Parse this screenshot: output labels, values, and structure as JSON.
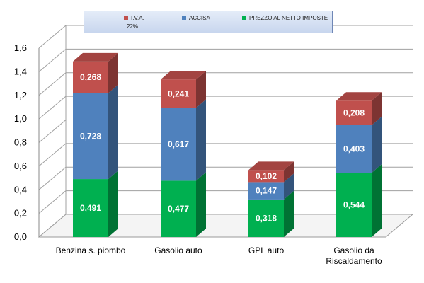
{
  "chart_data": {
    "type": "bar",
    "stacked": true,
    "three_d": true,
    "categories": [
      "Benzina s. piombo",
      "Gasolio auto",
      "GPL auto",
      "Gasolio da Riscaldamento"
    ],
    "category_lines": [
      [
        "Benzina s. piombo"
      ],
      [
        "Gasolio auto"
      ],
      [
        "GPL auto"
      ],
      [
        "Gasolio da",
        "Riscaldamento"
      ]
    ],
    "series": [
      {
        "name": "PREZZO AL NETTO IMPOSTE",
        "color": "#00b050",
        "values": [
          0.491,
          0.477,
          0.318,
          0.544
        ],
        "labels": [
          "0,491",
          "0,477",
          "0,318",
          "0,544"
        ]
      },
      {
        "name": "ACCISA",
        "color": "#4f81bd",
        "values": [
          0.728,
          0.617,
          0.147,
          0.403
        ],
        "labels": [
          "0,728",
          "0,617",
          "0,147",
          "0,403"
        ]
      },
      {
        "name": "I.V.A.",
        "color": "#c0504d",
        "values": [
          0.268,
          0.241,
          0.102,
          0.208
        ],
        "labels": [
          "0,268",
          "0,241",
          "0,102",
          "0,208"
        ]
      }
    ],
    "ylim": [
      0,
      1.6
    ],
    "yticks": [
      0,
      0.2,
      0.4,
      0.6,
      0.8,
      1.0,
      1.2,
      1.4,
      1.6
    ],
    "ytick_labels": [
      "0,0",
      "0,2",
      "0,4",
      "0,6",
      "0,8",
      "1,0",
      "1,2",
      "1,4",
      "1,6"
    ],
    "grid": true,
    "legend": {
      "position": "top",
      "order": [
        "I.V.A.",
        "ACCISA",
        "PREZZO AL NETTO IMPOSTE"
      ],
      "iva_note": "22%"
    },
    "title": "",
    "xlabel": "",
    "ylabel": ""
  }
}
